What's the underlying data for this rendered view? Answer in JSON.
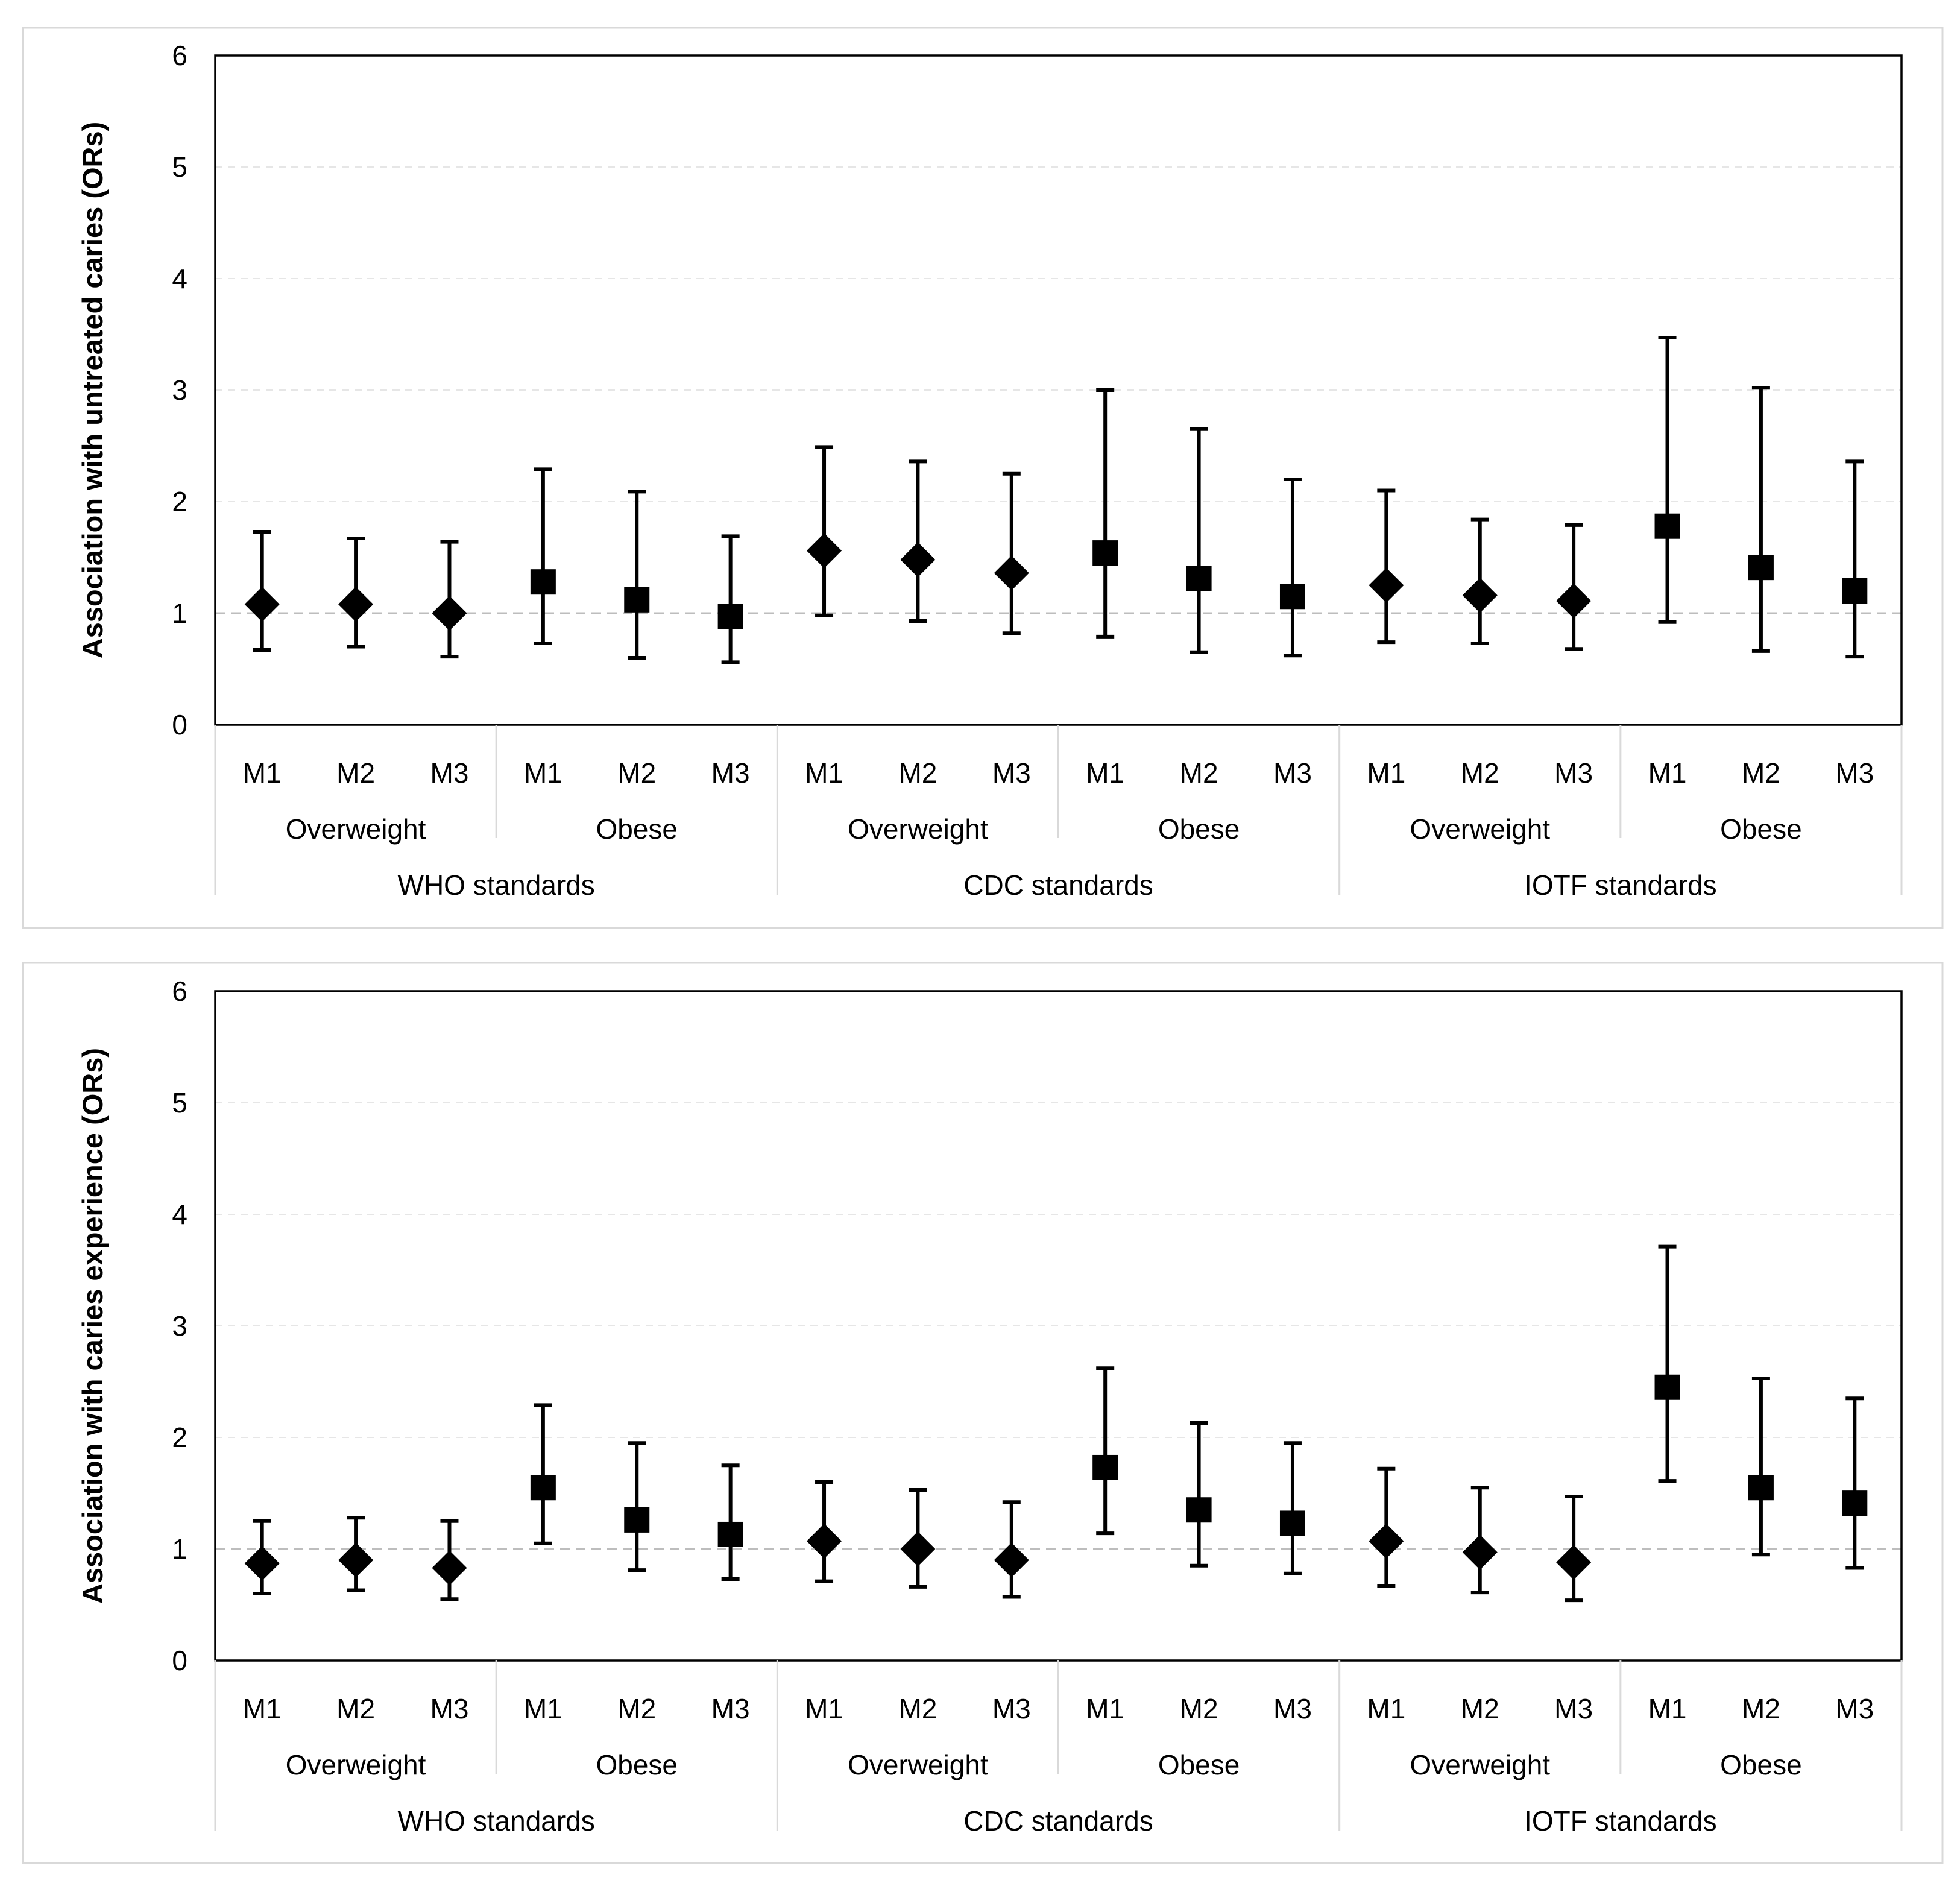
{
  "chart_data": [
    {
      "type": "scatter",
      "subtype": "forest_plot_with_error_bars",
      "ylabel": "Association with untreated caries (ORs)",
      "xlabel": "",
      "ylim": [
        0,
        6
      ],
      "yticks": [
        "0",
        "1",
        "2",
        "3",
        "4",
        "5",
        "6"
      ],
      "reference_line": 1,
      "grid": "horizontal dashed, light",
      "points": [
        {
          "standard": "WHO standards",
          "group": "Overweight",
          "model": "M1",
          "marker": "diamond",
          "or": 1.08,
          "lo": 0.67,
          "hi": 1.73
        },
        {
          "standard": "WHO standards",
          "group": "Overweight",
          "model": "M2",
          "marker": "diamond",
          "or": 1.08,
          "lo": 0.7,
          "hi": 1.67
        },
        {
          "standard": "WHO standards",
          "group": "Overweight",
          "model": "M3",
          "marker": "diamond",
          "or": 1.0,
          "lo": 0.61,
          "hi": 1.64
        },
        {
          "standard": "WHO standards",
          "group": "Obese",
          "model": "M1",
          "marker": "square",
          "or": 1.28,
          "lo": 0.73,
          "hi": 2.29
        },
        {
          "standard": "WHO standards",
          "group": "Obese",
          "model": "M2",
          "marker": "square",
          "or": 1.12,
          "lo": 0.6,
          "hi": 2.09
        },
        {
          "standard": "WHO standards",
          "group": "Obese",
          "model": "M3",
          "marker": "square",
          "or": 0.97,
          "lo": 0.56,
          "hi": 1.69
        },
        {
          "standard": "CDC standards",
          "group": "Overweight",
          "model": "M1",
          "marker": "diamond",
          "or": 1.56,
          "lo": 0.98,
          "hi": 2.49
        },
        {
          "standard": "CDC standards",
          "group": "Overweight",
          "model": "M2",
          "marker": "diamond",
          "or": 1.48,
          "lo": 0.93,
          "hi": 2.36
        },
        {
          "standard": "CDC standards",
          "group": "Overweight",
          "model": "M3",
          "marker": "diamond",
          "or": 1.36,
          "lo": 0.82,
          "hi": 2.25
        },
        {
          "standard": "CDC standards",
          "group": "Obese",
          "model": "M1",
          "marker": "square",
          "or": 1.54,
          "lo": 0.79,
          "hi": 3.0
        },
        {
          "standard": "CDC standards",
          "group": "Obese",
          "model": "M2",
          "marker": "square",
          "or": 1.31,
          "lo": 0.65,
          "hi": 2.65
        },
        {
          "standard": "CDC standards",
          "group": "Obese",
          "model": "M3",
          "marker": "square",
          "or": 1.15,
          "lo": 0.62,
          "hi": 2.2
        },
        {
          "standard": "IOTF standards",
          "group": "Overweight",
          "model": "M1",
          "marker": "diamond",
          "or": 1.25,
          "lo": 0.74,
          "hi": 2.1
        },
        {
          "standard": "IOTF standards",
          "group": "Overweight",
          "model": "M2",
          "marker": "diamond",
          "or": 1.16,
          "lo": 0.73,
          "hi": 1.84
        },
        {
          "standard": "IOTF standards",
          "group": "Overweight",
          "model": "M3",
          "marker": "diamond",
          "or": 1.11,
          "lo": 0.68,
          "hi": 1.79
        },
        {
          "standard": "IOTF standards",
          "group": "Obese",
          "model": "M1",
          "marker": "square",
          "or": 1.78,
          "lo": 0.92,
          "hi": 3.47
        },
        {
          "standard": "IOTF standards",
          "group": "Obese",
          "model": "M2",
          "marker": "square",
          "or": 1.41,
          "lo": 0.66,
          "hi": 3.02
        },
        {
          "standard": "IOTF standards",
          "group": "Obese",
          "model": "M3",
          "marker": "square",
          "or": 1.2,
          "lo": 0.61,
          "hi": 2.36
        }
      ]
    },
    {
      "type": "scatter",
      "subtype": "forest_plot_with_error_bars",
      "ylabel": "Association with caries experience (ORs)",
      "xlabel": "",
      "ylim": [
        0,
        6
      ],
      "yticks": [
        "0",
        "1",
        "2",
        "3",
        "4",
        "5",
        "6"
      ],
      "reference_line": 1,
      "grid": "horizontal dashed, light",
      "points": [
        {
          "standard": "WHO standards",
          "group": "Overweight",
          "model": "M1",
          "marker": "diamond",
          "or": 0.87,
          "lo": 0.6,
          "hi": 1.25
        },
        {
          "standard": "WHO standards",
          "group": "Overweight",
          "model": "M2",
          "marker": "diamond",
          "or": 0.9,
          "lo": 0.63,
          "hi": 1.28
        },
        {
          "standard": "WHO standards",
          "group": "Overweight",
          "model": "M3",
          "marker": "diamond",
          "or": 0.83,
          "lo": 0.55,
          "hi": 1.25
        },
        {
          "standard": "WHO standards",
          "group": "Obese",
          "model": "M1",
          "marker": "square",
          "or": 1.55,
          "lo": 1.05,
          "hi": 2.29
        },
        {
          "standard": "WHO standards",
          "group": "Obese",
          "model": "M2",
          "marker": "square",
          "or": 1.26,
          "lo": 0.81,
          "hi": 1.95
        },
        {
          "standard": "WHO standards",
          "group": "Obese",
          "model": "M3",
          "marker": "square",
          "or": 1.13,
          "lo": 0.73,
          "hi": 1.75
        },
        {
          "standard": "CDC standards",
          "group": "Overweight",
          "model": "M1",
          "marker": "diamond",
          "or": 1.07,
          "lo": 0.71,
          "hi": 1.6
        },
        {
          "standard": "CDC standards",
          "group": "Overweight",
          "model": "M2",
          "marker": "diamond",
          "or": 1.0,
          "lo": 0.66,
          "hi": 1.53
        },
        {
          "standard": "CDC standards",
          "group": "Overweight",
          "model": "M3",
          "marker": "diamond",
          "or": 0.9,
          "lo": 0.57,
          "hi": 1.42
        },
        {
          "standard": "CDC standards",
          "group": "Obese",
          "model": "M1",
          "marker": "square",
          "or": 1.73,
          "lo": 1.14,
          "hi": 2.62
        },
        {
          "standard": "CDC standards",
          "group": "Obese",
          "model": "M2",
          "marker": "square",
          "or": 1.35,
          "lo": 0.85,
          "hi": 2.13
        },
        {
          "standard": "CDC standards",
          "group": "Obese",
          "model": "M3",
          "marker": "square",
          "or": 1.23,
          "lo": 0.78,
          "hi": 1.95
        },
        {
          "standard": "IOTF standards",
          "group": "Overweight",
          "model": "M1",
          "marker": "diamond",
          "or": 1.07,
          "lo": 0.67,
          "hi": 1.72
        },
        {
          "standard": "IOTF standards",
          "group": "Overweight",
          "model": "M2",
          "marker": "diamond",
          "or": 0.97,
          "lo": 0.61,
          "hi": 1.55
        },
        {
          "standard": "IOTF standards",
          "group": "Overweight",
          "model": "M3",
          "marker": "diamond",
          "or": 0.88,
          "lo": 0.54,
          "hi": 1.47
        },
        {
          "standard": "IOTF standards",
          "group": "Obese",
          "model": "M1",
          "marker": "square",
          "or": 2.45,
          "lo": 1.61,
          "hi": 3.71
        },
        {
          "standard": "IOTF standards",
          "group": "Obese",
          "model": "M2",
          "marker": "square",
          "or": 1.55,
          "lo": 0.95,
          "hi": 2.53
        },
        {
          "standard": "IOTF standards",
          "group": "Obese",
          "model": "M3",
          "marker": "square",
          "or": 1.41,
          "lo": 0.83,
          "hi": 2.35
        }
      ]
    }
  ],
  "colors": {
    "marker": "#000000",
    "axis": "#000000",
    "grid": "#e6e6e6",
    "reference_line": "#bdbdbd",
    "separator": "#d9d9d9",
    "panel_border": "#d9d9d9"
  }
}
